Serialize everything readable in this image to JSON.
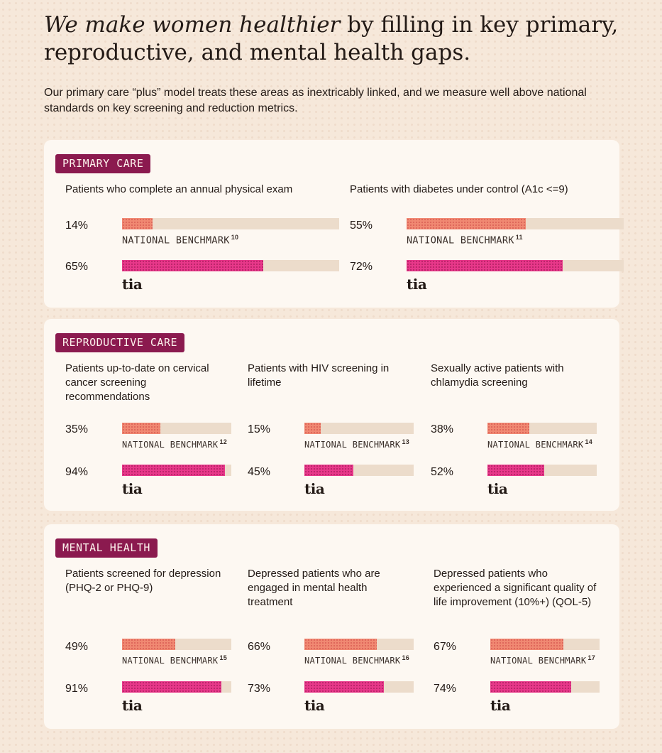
{
  "headline": {
    "emphasis": "We make women healthier",
    "rest": " by filling in key primary, reproductive, and mental health gaps."
  },
  "intro": "Our primary care “plus” model treats these areas as inextricably linked, and we measure well above national standards on key screening and reduction metrics.",
  "benchmark_label": "NATIONAL BENCHMARK",
  "logo_text": "tia",
  "colors": {
    "tag_bg": "#8b1a4f",
    "benchmark_bar": "#f08972",
    "tia_bar": "#e8388a",
    "track": "#ecdccb"
  },
  "chart_data": [
    {
      "type": "bar",
      "title": "PRIMARY CARE",
      "metrics": [
        {
          "label": "Patients who complete an annual physical exam",
          "benchmark": 14,
          "benchmark_text": "14%",
          "benchmark_ref": "10",
          "tia": 65,
          "tia_text": "65%"
        },
        {
          "label": "Patients with diabetes under control (A1c <=9)",
          "benchmark": 55,
          "benchmark_text": "55%",
          "benchmark_ref": "11",
          "tia": 72,
          "tia_text": "72%"
        }
      ]
    },
    {
      "type": "bar",
      "title": "REPRODUCTIVE CARE",
      "metrics": [
        {
          "label": "Patients up-to-date on cervical cancer screening recommendations",
          "benchmark": 35,
          "benchmark_text": "35%",
          "benchmark_ref": "12",
          "tia": 94,
          "tia_text": "94%"
        },
        {
          "label": "Patients with HIV screening in lifetime",
          "benchmark": 15,
          "benchmark_text": "15%",
          "benchmark_ref": "13",
          "tia": 45,
          "tia_text": "45%"
        },
        {
          "label": "Sexually active patients with chlamydia screening",
          "benchmark": 38,
          "benchmark_text": "38%",
          "benchmark_ref": "14",
          "tia": 52,
          "tia_text": "52%"
        }
      ]
    },
    {
      "type": "bar",
      "title": "MENTAL HEALTH",
      "metrics": [
        {
          "label": "Patients screened for depression (PHQ-2 or PHQ-9)",
          "benchmark": 49,
          "benchmark_text": "49%",
          "benchmark_ref": "15",
          "tia": 91,
          "tia_text": "91%"
        },
        {
          "label": "Depressed patients who are engaged in mental health treatment",
          "benchmark": 66,
          "benchmark_text": "66%",
          "benchmark_ref": "16",
          "tia": 73,
          "tia_text": "73%"
        },
        {
          "label": "Depressed patients who experienced a significant quality of life improvement (10%+) (QOL-5)",
          "benchmark": 67,
          "benchmark_text": "67%",
          "benchmark_ref": "17",
          "tia": 74,
          "tia_text": "74%"
        }
      ]
    }
  ]
}
